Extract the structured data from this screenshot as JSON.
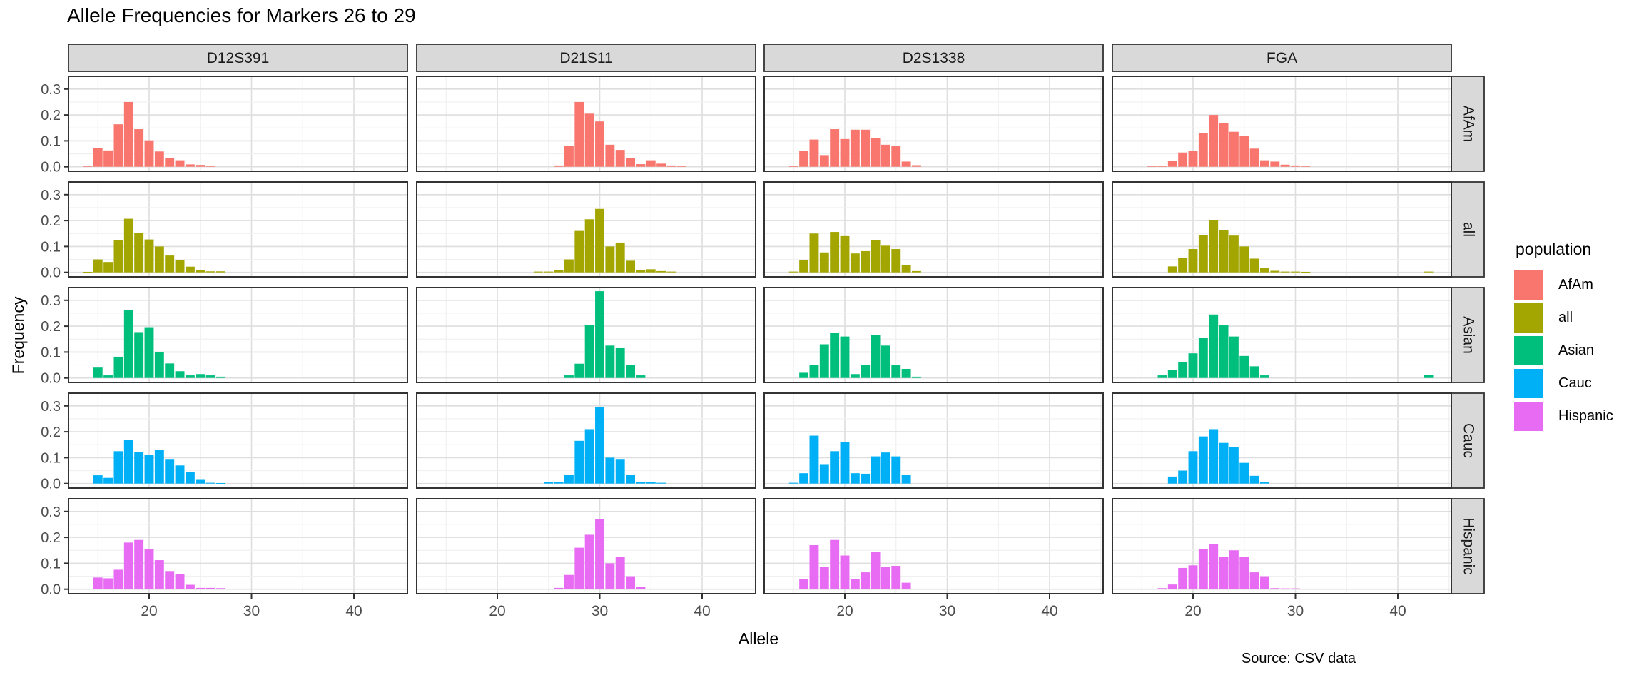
{
  "title": "Allele Frequencies for Markers 26 to 29",
  "caption": "Source: CSV data",
  "axes": {
    "x_label": "Allele",
    "y_label": "Frequency",
    "x_tick_labels": [
      "20",
      "30",
      "40"
    ],
    "y_tick_labels": [
      "0.0",
      "0.1",
      "0.2",
      "0.3"
    ]
  },
  "legend": {
    "title": "population",
    "entries": [
      {
        "label": "AfAm",
        "color": "#F8766D"
      },
      {
        "label": "all",
        "color": "#A3A500"
      },
      {
        "label": "Asian",
        "color": "#00BF7D"
      },
      {
        "label": "Cauc",
        "color": "#00B0F6"
      },
      {
        "label": "Hispanic",
        "color": "#E76BF3"
      }
    ]
  },
  "chart_data": {
    "type": "bar",
    "title": "Allele Frequencies for Markers 26 to 29",
    "xlabel": "Allele",
    "ylabel": "Frequency",
    "facet_columns": [
      "D12S391",
      "D21S11",
      "D2S1338",
      "FGA"
    ],
    "facet_rows": [
      "AfAm",
      "all",
      "Asian",
      "Cauc",
      "Hispanic"
    ],
    "x_ticks": [
      20,
      30,
      40
    ],
    "y_ticks": [
      0.0,
      0.1,
      0.2,
      0.3
    ],
    "xlim": [
      12.1,
      45.2
    ],
    "ylim": [
      -0.0175,
      0.35
    ],
    "grid": "on",
    "legend_position": "right",
    "bar_width": 0.9,
    "colors": {
      "AfAm": "#F8766D",
      "all": "#A3A500",
      "Asian": "#00BF7D",
      "Cauc": "#00B0F6",
      "Hispanic": "#E76BF3"
    },
    "cells": [
      {
        "marker": "D12S391",
        "population": "AfAm",
        "points": [
          [
            14,
            0.004
          ],
          [
            15,
            0.073
          ],
          [
            16,
            0.063
          ],
          [
            17,
            0.164
          ],
          [
            18,
            0.25
          ],
          [
            19,
            0.145
          ],
          [
            20,
            0.102
          ],
          [
            21,
            0.059
          ],
          [
            22,
            0.034
          ],
          [
            23,
            0.025
          ],
          [
            24,
            0.009
          ],
          [
            25,
            0.007
          ],
          [
            26,
            0.004
          ]
        ]
      },
      {
        "marker": "D12S391",
        "population": "all",
        "points": [
          [
            14,
            0.002
          ],
          [
            15,
            0.05
          ],
          [
            16,
            0.04
          ],
          [
            17,
            0.125
          ],
          [
            18,
            0.207
          ],
          [
            19,
            0.152
          ],
          [
            20,
            0.127
          ],
          [
            21,
            0.1
          ],
          [
            22,
            0.065
          ],
          [
            23,
            0.048
          ],
          [
            24,
            0.022
          ],
          [
            25,
            0.01
          ],
          [
            26,
            0.004
          ],
          [
            27,
            0.004
          ]
        ]
      },
      {
        "marker": "D12S391",
        "population": "Asian",
        "points": [
          [
            15,
            0.04
          ],
          [
            16,
            0.01
          ],
          [
            17,
            0.082
          ],
          [
            18,
            0.262
          ],
          [
            19,
            0.177
          ],
          [
            20,
            0.196
          ],
          [
            21,
            0.1
          ],
          [
            22,
            0.056
          ],
          [
            23,
            0.026
          ],
          [
            24,
            0.01
          ],
          [
            25,
            0.015
          ],
          [
            26,
            0.01
          ],
          [
            27,
            0.005
          ]
        ]
      },
      {
        "marker": "D12S391",
        "population": "Cauc",
        "points": [
          [
            15,
            0.032
          ],
          [
            16,
            0.022
          ],
          [
            17,
            0.125
          ],
          [
            18,
            0.17
          ],
          [
            19,
            0.122
          ],
          [
            20,
            0.11
          ],
          [
            21,
            0.13
          ],
          [
            22,
            0.095
          ],
          [
            23,
            0.07
          ],
          [
            24,
            0.045
          ],
          [
            25,
            0.017
          ],
          [
            26,
            0.003
          ],
          [
            27,
            0.002
          ]
        ]
      },
      {
        "marker": "D12S391",
        "population": "Hispanic",
        "points": [
          [
            15,
            0.045
          ],
          [
            16,
            0.042
          ],
          [
            17,
            0.075
          ],
          [
            18,
            0.18
          ],
          [
            19,
            0.19
          ],
          [
            20,
            0.155
          ],
          [
            21,
            0.112
          ],
          [
            22,
            0.07
          ],
          [
            23,
            0.057
          ],
          [
            24,
            0.017
          ],
          [
            25,
            0.005
          ],
          [
            26,
            0.005
          ],
          [
            27,
            0.004
          ]
        ]
      },
      {
        "marker": "D21S11",
        "population": "AfAm",
        "points": [
          [
            26,
            0.005
          ],
          [
            27,
            0.08
          ],
          [
            28,
            0.25
          ],
          [
            29,
            0.205
          ],
          [
            30,
            0.175
          ],
          [
            31,
            0.085
          ],
          [
            32,
            0.065
          ],
          [
            33,
            0.035
          ],
          [
            34,
            0.01
          ],
          [
            35,
            0.025
          ],
          [
            36,
            0.012
          ],
          [
            37,
            0.005
          ],
          [
            38,
            0.004
          ]
        ]
      },
      {
        "marker": "D21S11",
        "population": "all",
        "points": [
          [
            24,
            0.003
          ],
          [
            25,
            0.003
          ],
          [
            26,
            0.01
          ],
          [
            27,
            0.05
          ],
          [
            28,
            0.16
          ],
          [
            29,
            0.205
          ],
          [
            30,
            0.245
          ],
          [
            31,
            0.1
          ],
          [
            32,
            0.115
          ],
          [
            33,
            0.045
          ],
          [
            34,
            0.008
          ],
          [
            35,
            0.012
          ],
          [
            36,
            0.005
          ],
          [
            37,
            0.003
          ]
        ]
      },
      {
        "marker": "D21S11",
        "population": "Asian",
        "points": [
          [
            27,
            0.01
          ],
          [
            28,
            0.055
          ],
          [
            29,
            0.205
          ],
          [
            30,
            0.335
          ],
          [
            31,
            0.125
          ],
          [
            32,
            0.115
          ],
          [
            33,
            0.05
          ],
          [
            34,
            0.01
          ]
        ]
      },
      {
        "marker": "D21S11",
        "population": "Cauc",
        "points": [
          [
            25,
            0.005
          ],
          [
            26,
            0.005
          ],
          [
            27,
            0.035
          ],
          [
            28,
            0.165
          ],
          [
            29,
            0.21
          ],
          [
            30,
            0.295
          ],
          [
            31,
            0.1
          ],
          [
            32,
            0.095
          ],
          [
            33,
            0.035
          ],
          [
            34,
            0.005
          ],
          [
            35,
            0.005
          ],
          [
            36,
            0.003
          ]
        ]
      },
      {
        "marker": "D21S11",
        "population": "Hispanic",
        "points": [
          [
            26,
            0.005
          ],
          [
            27,
            0.055
          ],
          [
            28,
            0.16
          ],
          [
            29,
            0.21
          ],
          [
            30,
            0.27
          ],
          [
            31,
            0.1
          ],
          [
            32,
            0.125
          ],
          [
            33,
            0.05
          ],
          [
            34,
            0.008
          ]
        ]
      },
      {
        "marker": "D2S1338",
        "population": "AfAm",
        "points": [
          [
            15,
            0.004
          ],
          [
            16,
            0.06
          ],
          [
            17,
            0.105
          ],
          [
            18,
            0.045
          ],
          [
            19,
            0.145
          ],
          [
            20,
            0.107
          ],
          [
            21,
            0.143
          ],
          [
            22,
            0.143
          ],
          [
            23,
            0.11
          ],
          [
            24,
            0.085
          ],
          [
            25,
            0.08
          ],
          [
            26,
            0.02
          ],
          [
            27,
            0.006
          ]
        ]
      },
      {
        "marker": "D2S1338",
        "population": "all",
        "points": [
          [
            15,
            0.003
          ],
          [
            16,
            0.047
          ],
          [
            17,
            0.15
          ],
          [
            18,
            0.077
          ],
          [
            19,
            0.156
          ],
          [
            20,
            0.14
          ],
          [
            21,
            0.073
          ],
          [
            22,
            0.082
          ],
          [
            23,
            0.125
          ],
          [
            24,
            0.103
          ],
          [
            25,
            0.09
          ],
          [
            26,
            0.027
          ],
          [
            27,
            0.005
          ]
        ]
      },
      {
        "marker": "D2S1338",
        "population": "Asian",
        "points": [
          [
            16,
            0.02
          ],
          [
            17,
            0.05
          ],
          [
            18,
            0.13
          ],
          [
            19,
            0.175
          ],
          [
            20,
            0.16
          ],
          [
            21,
            0.015
          ],
          [
            22,
            0.05
          ],
          [
            23,
            0.165
          ],
          [
            24,
            0.125
          ],
          [
            25,
            0.05
          ],
          [
            26,
            0.035
          ],
          [
            27,
            0.005
          ]
        ]
      },
      {
        "marker": "D2S1338",
        "population": "Cauc",
        "points": [
          [
            15,
            0.003
          ],
          [
            16,
            0.04
          ],
          [
            17,
            0.185
          ],
          [
            18,
            0.075
          ],
          [
            19,
            0.125
          ],
          [
            20,
            0.16
          ],
          [
            21,
            0.04
          ],
          [
            22,
            0.038
          ],
          [
            23,
            0.105
          ],
          [
            24,
            0.12
          ],
          [
            25,
            0.105
          ],
          [
            26,
            0.035
          ]
        ]
      },
      {
        "marker": "D2S1338",
        "population": "Hispanic",
        "points": [
          [
            16,
            0.04
          ],
          [
            17,
            0.17
          ],
          [
            18,
            0.085
          ],
          [
            19,
            0.19
          ],
          [
            20,
            0.13
          ],
          [
            21,
            0.04
          ],
          [
            22,
            0.065
          ],
          [
            23,
            0.145
          ],
          [
            24,
            0.085
          ],
          [
            25,
            0.09
          ],
          [
            26,
            0.025
          ]
        ]
      },
      {
        "marker": "FGA",
        "population": "AfAm",
        "points": [
          [
            16,
            0.003
          ],
          [
            17,
            0.003
          ],
          [
            18,
            0.022
          ],
          [
            19,
            0.055
          ],
          [
            20,
            0.06
          ],
          [
            21,
            0.13
          ],
          [
            22,
            0.2
          ],
          [
            23,
            0.17
          ],
          [
            24,
            0.135
          ],
          [
            25,
            0.12
          ],
          [
            26,
            0.07
          ],
          [
            27,
            0.025
          ],
          [
            28,
            0.02
          ],
          [
            29,
            0.008
          ],
          [
            30,
            0.005
          ],
          [
            31,
            0.004
          ]
        ]
      },
      {
        "marker": "FGA",
        "population": "all",
        "points": [
          [
            18,
            0.023
          ],
          [
            19,
            0.057
          ],
          [
            20,
            0.09
          ],
          [
            21,
            0.145
          ],
          [
            22,
            0.203
          ],
          [
            23,
            0.162
          ],
          [
            24,
            0.142
          ],
          [
            25,
            0.1
          ],
          [
            26,
            0.053
          ],
          [
            27,
            0.018
          ],
          [
            28,
            0.006
          ],
          [
            29,
            0.003
          ],
          [
            30,
            0.003
          ],
          [
            31,
            0.002
          ],
          [
            43,
            0.003
          ]
        ]
      },
      {
        "marker": "FGA",
        "population": "Asian",
        "points": [
          [
            17,
            0.01
          ],
          [
            18,
            0.03
          ],
          [
            19,
            0.06
          ],
          [
            20,
            0.095
          ],
          [
            21,
            0.155
          ],
          [
            22,
            0.245
          ],
          [
            23,
            0.205
          ],
          [
            24,
            0.16
          ],
          [
            25,
            0.085
          ],
          [
            26,
            0.045
          ],
          [
            27,
            0.01
          ],
          [
            43,
            0.012
          ]
        ]
      },
      {
        "marker": "FGA",
        "population": "Cauc",
        "points": [
          [
            18,
            0.027
          ],
          [
            19,
            0.05
          ],
          [
            20,
            0.125
          ],
          [
            21,
            0.182
          ],
          [
            22,
            0.21
          ],
          [
            23,
            0.157
          ],
          [
            24,
            0.14
          ],
          [
            25,
            0.08
          ],
          [
            26,
            0.03
          ],
          [
            27,
            0.005
          ]
        ]
      },
      {
        "marker": "FGA",
        "population": "Hispanic",
        "points": [
          [
            17,
            0.004
          ],
          [
            18,
            0.018
          ],
          [
            19,
            0.082
          ],
          [
            20,
            0.092
          ],
          [
            21,
            0.155
          ],
          [
            22,
            0.175
          ],
          [
            23,
            0.125
          ],
          [
            24,
            0.15
          ],
          [
            25,
            0.125
          ],
          [
            26,
            0.065
          ],
          [
            27,
            0.05
          ],
          [
            28,
            0.004
          ],
          [
            29,
            0.003
          ],
          [
            30,
            0.003
          ]
        ]
      }
    ]
  }
}
